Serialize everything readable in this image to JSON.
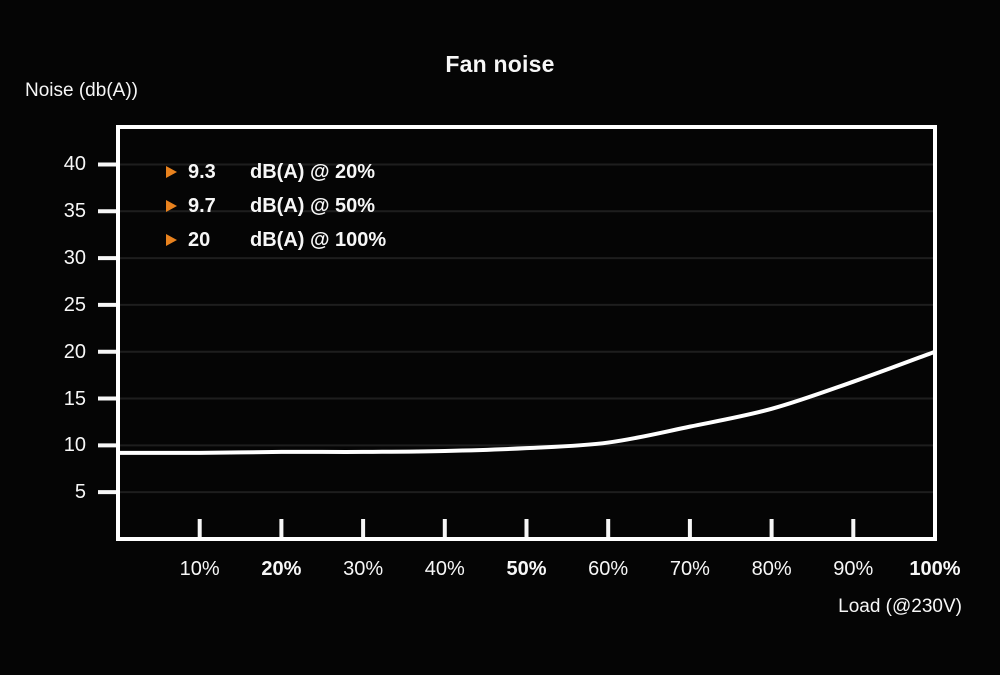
{
  "colors": {
    "background": "#050505",
    "foreground": "#f7f7f7",
    "gridline": "#1e1e1e",
    "curve": "#ffffff",
    "accent_orange": "#e8821e"
  },
  "chart_data": {
    "type": "line",
    "title": "Fan noise",
    "ylabel": "Noise (db(A))",
    "xlabel": "Load (@230V)",
    "x": [
      0,
      10,
      20,
      30,
      40,
      50,
      60,
      70,
      80,
      90,
      100
    ],
    "y": [
      9.2,
      9.2,
      9.3,
      9.3,
      9.4,
      9.7,
      10.3,
      12.0,
      13.9,
      16.8,
      20.0
    ],
    "series_name": "Fan noise",
    "xlim": [
      0,
      100
    ],
    "ylim": [
      0,
      44
    ],
    "yticks": [
      5,
      10,
      15,
      20,
      25,
      30,
      35,
      40
    ],
    "xticks": [
      {
        "label": "10%",
        "value": 10,
        "bold": false
      },
      {
        "label": "20%",
        "value": 20,
        "bold": true
      },
      {
        "label": "30%",
        "value": 30,
        "bold": false
      },
      {
        "label": "40%",
        "value": 40,
        "bold": false
      },
      {
        "label": "50%",
        "value": 50,
        "bold": true
      },
      {
        "label": "60%",
        "value": 60,
        "bold": false
      },
      {
        "label": "70%",
        "value": 70,
        "bold": false
      },
      {
        "label": "80%",
        "value": 80,
        "bold": false
      },
      {
        "label": "90%",
        "value": 90,
        "bold": false
      },
      {
        "label": "100%",
        "value": 100,
        "bold": true
      }
    ],
    "grid": "horizontal",
    "legend_position": "top-left-inside",
    "annotations": [
      {
        "value": "9.3",
        "text": "dB(A) @ 20%"
      },
      {
        "value": "9.7",
        "text": "dB(A) @ 50%"
      },
      {
        "value": "20",
        "text": "dB(A) @ 100%"
      }
    ]
  }
}
